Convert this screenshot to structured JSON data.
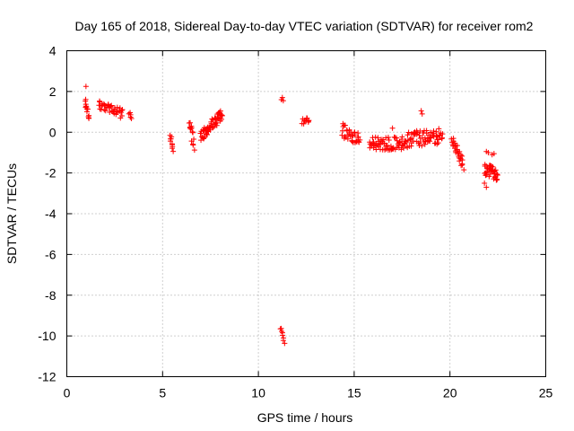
{
  "chart_data": {
    "type": "scatter",
    "title": "Day 165 of 2018, Sidereal Day-to-day VTEC variation (SDTVAR) for receiver rom2",
    "xlabel": "GPS time / hours",
    "ylabel": "SDTVAR / TECUs",
    "xlim": [
      0,
      25
    ],
    "ylim": [
      -12,
      4
    ],
    "xticks": [
      0,
      5,
      10,
      15,
      20,
      25
    ],
    "yticks": [
      -12,
      -10,
      -8,
      -6,
      -4,
      -2,
      0,
      2,
      4
    ],
    "grid": true,
    "marker": "plus",
    "color": "#ff0000",
    "segments": [
      {
        "x0": 0.95,
        "x1": 1.15,
        "y0": 1.5,
        "y1": 0.75,
        "jitter": 0.25,
        "count": 14
      },
      {
        "x0": 1.65,
        "x1": 2.9,
        "y0": 1.35,
        "y1": 0.95,
        "jitter": 0.2,
        "count": 40
      },
      {
        "x0": 3.25,
        "x1": 3.35,
        "y0": 1.05,
        "y1": 0.65,
        "jitter": 0.15,
        "count": 5
      },
      {
        "x0": 5.4,
        "x1": 5.55,
        "y0": -0.1,
        "y1": -1.0,
        "jitter": 0.2,
        "count": 10
      },
      {
        "x0": 6.4,
        "x1": 6.65,
        "y0": 0.4,
        "y1": -0.6,
        "jitter": 0.3,
        "count": 14
      },
      {
        "x0": 7.0,
        "x1": 8.1,
        "y0": -0.2,
        "y1": 0.9,
        "jitter": 0.3,
        "count": 60
      },
      {
        "x0": 11.15,
        "x1": 11.35,
        "y0": -9.6,
        "y1": -10.4,
        "jitter": 0.1,
        "count": 8
      },
      {
        "x0": 12.3,
        "x1": 12.65,
        "y0": 0.5,
        "y1": 0.6,
        "jitter": 0.15,
        "count": 12
      },
      {
        "x0": 14.35,
        "x1": 15.3,
        "y0": 0.1,
        "y1": -0.4,
        "jitter": 0.35,
        "count": 35
      },
      {
        "x0": 15.8,
        "x1": 17.5,
        "y0": -0.5,
        "y1": -0.6,
        "jitter": 0.35,
        "count": 60
      },
      {
        "x0": 17.5,
        "x1": 19.6,
        "y0": -0.4,
        "y1": -0.2,
        "jitter": 0.4,
        "count": 80
      },
      {
        "x0": 20.1,
        "x1": 20.7,
        "y0": -0.4,
        "y1": -1.6,
        "jitter": 0.3,
        "count": 30
      },
      {
        "x0": 21.8,
        "x1": 22.5,
        "y0": -1.8,
        "y1": -2.1,
        "jitter": 0.3,
        "count": 40
      }
    ],
    "points": [
      {
        "x": 1.0,
        "y": 2.25
      },
      {
        "x": 2.5,
        "y": 1.2
      },
      {
        "x": 2.8,
        "y": 0.7
      },
      {
        "x": 11.25,
        "y": 1.7
      },
      {
        "x": 11.3,
        "y": 1.55
      },
      {
        "x": 11.2,
        "y": 1.6
      },
      {
        "x": 18.5,
        "y": 1.05
      },
      {
        "x": 18.55,
        "y": 0.9
      },
      {
        "x": 17.0,
        "y": 0.2
      },
      {
        "x": 22.0,
        "y": -1.0
      },
      {
        "x": 22.2,
        "y": -1.1
      },
      {
        "x": 21.9,
        "y": -0.95
      },
      {
        "x": 22.3,
        "y": -1.05
      },
      {
        "x": 21.8,
        "y": -2.5
      },
      {
        "x": 21.9,
        "y": -2.7
      }
    ]
  }
}
